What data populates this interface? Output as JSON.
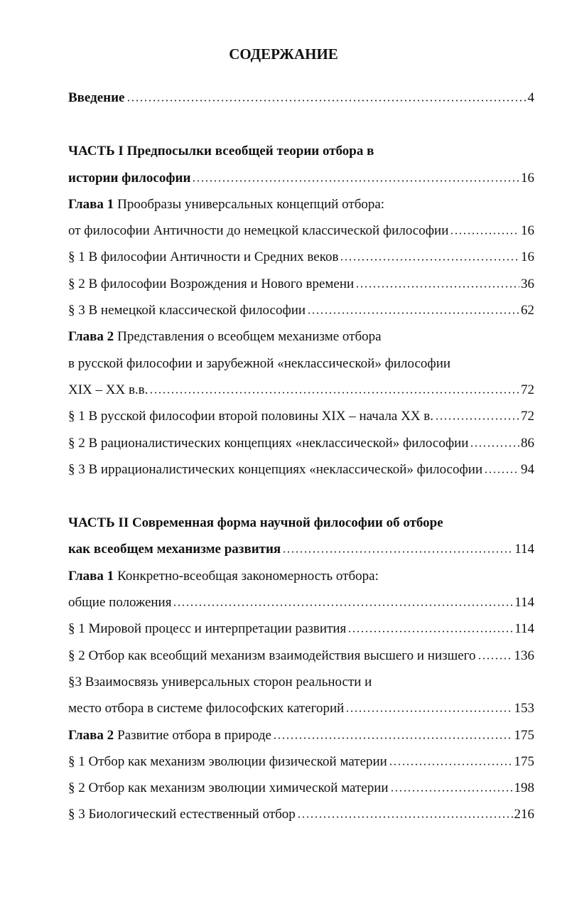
{
  "title": "СОДЕРЖАНИЕ",
  "intro": {
    "bold": "Введение",
    "page": "4"
  },
  "parts": [
    {
      "lines": [
        {
          "bold": "ЧАСТЬ I Предпосылки всеобщей теории отбора в"
        },
        {
          "bold": "истории философии",
          "page": "16"
        },
        {
          "bold": "Глава 1",
          "text": "Прообразы универсальных концепций отбора:"
        },
        {
          "text": "от философии Античности до немецкой классической философии",
          "page": "16"
        },
        {
          "text": "§ 1 В философии Античности и Средних веков",
          "page": "16"
        },
        {
          "text": "§ 2 В философии Возрождения и Нового времени",
          "page": "36"
        },
        {
          "text": "§ 3 В немецкой классической философии",
          "page": "62"
        },
        {
          "bold": "Глава 2",
          "text": "Представления о всеобщем механизме отбора"
        },
        {
          "text": "в русской философии и зарубежной «неклассической» философии"
        },
        {
          "text": "XIX – XX в.в.",
          "page": "72"
        },
        {
          "text": "§ 1 В русской философии второй половины XIX – начала XX в.",
          "page": "72"
        },
        {
          "text": "§ 2 В рационалистических концепциях «неклассической» философии",
          "page": "86"
        },
        {
          "text": "§ 3 В иррационалистических концепциях «неклассической» философии",
          "page": "94"
        }
      ]
    },
    {
      "lines": [
        {
          "bold": "ЧАСТЬ II Современная форма научной философии об отборе"
        },
        {
          "bold": "как всеобщем механизме развития",
          "page": "114"
        },
        {
          "bold": "Глава 1",
          "text": "Конкретно-всеобщая закономерность отбора:"
        },
        {
          "text": "общие положения",
          "page": "114"
        },
        {
          "text": "§ 1 Мировой процесс и интерпретации развития",
          "page": "114"
        },
        {
          "text": "§ 2 Отбор как всеобщий механизм взаимодействия высшего и низшего",
          "page": "136"
        },
        {
          "text": "§3 Взаимосвязь универсальных сторон реальности и"
        },
        {
          "text": "место отбора в системе философских категорий",
          "page": "153"
        },
        {
          "bold": "Глава 2",
          "text": "Развитие отбора в природе",
          "page": "175"
        },
        {
          "text": "§ 1 Отбор как механизм эволюции физической материи",
          "page": "175"
        },
        {
          "text": "§ 2 Отбор как механизм эволюции химической материи",
          "page": "198"
        },
        {
          "text": "§ 3 Биологический естественный отбор",
          "page": "216"
        }
      ]
    }
  ]
}
